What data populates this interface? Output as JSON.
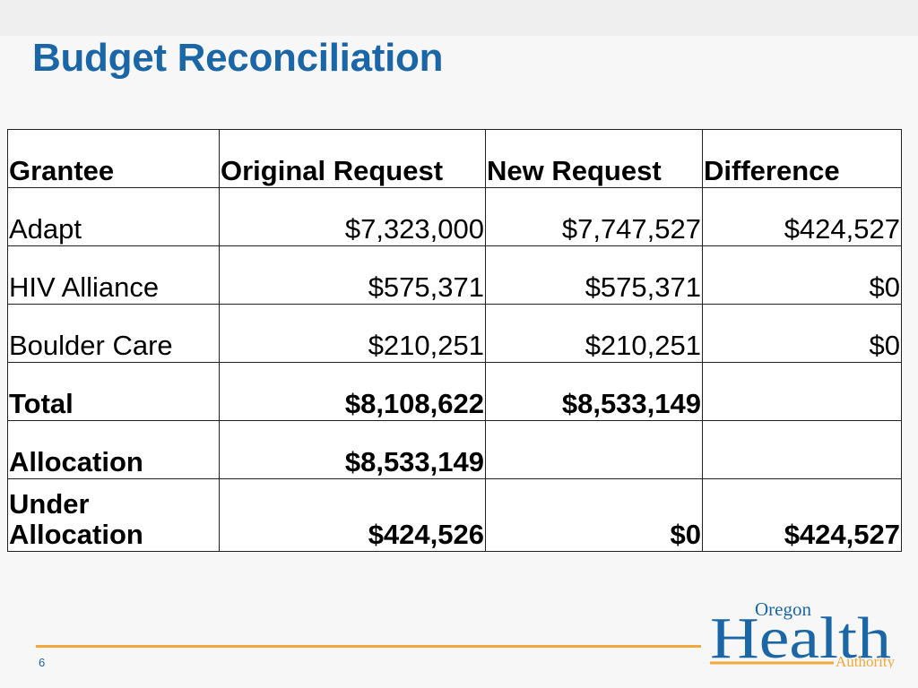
{
  "slide": {
    "title": "Budget Reconciliation",
    "page_number": "6"
  },
  "table": {
    "headers": [
      "Grantee",
      "Original Request",
      "New Request",
      "Difference"
    ],
    "rows": [
      {
        "grantee": "Adapt",
        "original": "$7,323,000",
        "new": "$7,747,527",
        "difference": "$424,527"
      },
      {
        "grantee": "HIV Alliance",
        "original": "$575,371",
        "new": "$575,371",
        "difference": "$0"
      },
      {
        "grantee": "Boulder Care",
        "original": "$210,251",
        "new": "$210,251",
        "difference": "$0"
      }
    ],
    "total": {
      "label": "Total",
      "original": "$8,108,622",
      "new": "$8,533,149"
    },
    "allocation": {
      "label": "Allocation",
      "original": "$8,533,149"
    },
    "under_allocation": {
      "label_line1": "Under",
      "label_line2": "Allocation",
      "original": "$424,526",
      "new": "$0",
      "difference": "$424,527"
    }
  },
  "logo": {
    "line1": "Oregon",
    "line2": "Health",
    "line3": "Authority",
    "color_primary": "#1a66a6",
    "color_accent": "#f2a83a"
  }
}
